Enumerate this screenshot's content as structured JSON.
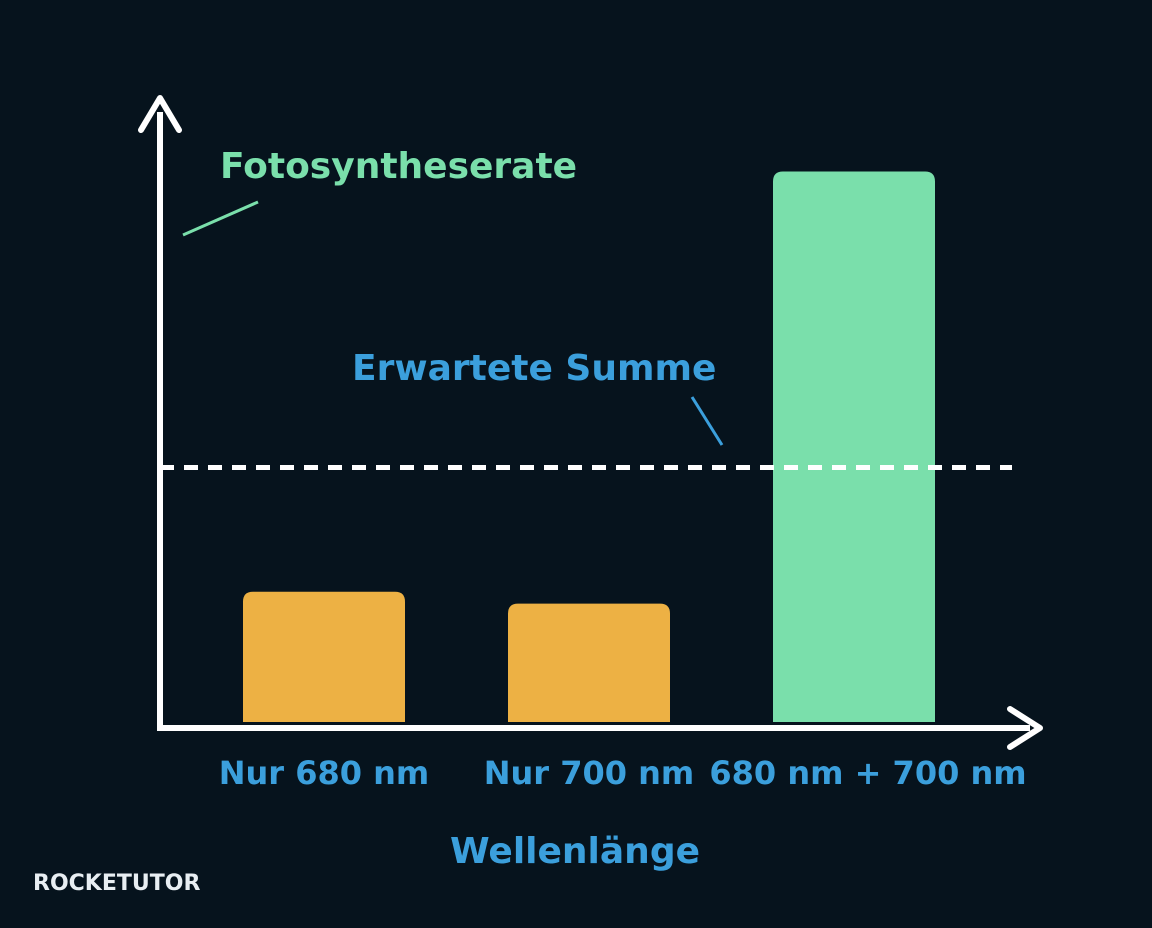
{
  "chart_data": {
    "type": "bar",
    "y_label": "Fotosyntheserate",
    "x_label": "Wellenlänge",
    "categories": [
      "Nur 680 nm",
      "Nur 700 nm",
      "680 nm + 700 nm"
    ],
    "values": [
      22,
      20,
      93
    ],
    "colors": [
      "#edb144",
      "#edb144",
      "#7adfab"
    ],
    "ylim": [
      0,
      100
    ],
    "reference_line": {
      "label": "Erwartete Summe",
      "value": 43,
      "color": "#ffffff"
    },
    "watermark": "ROCKETUTOR"
  }
}
